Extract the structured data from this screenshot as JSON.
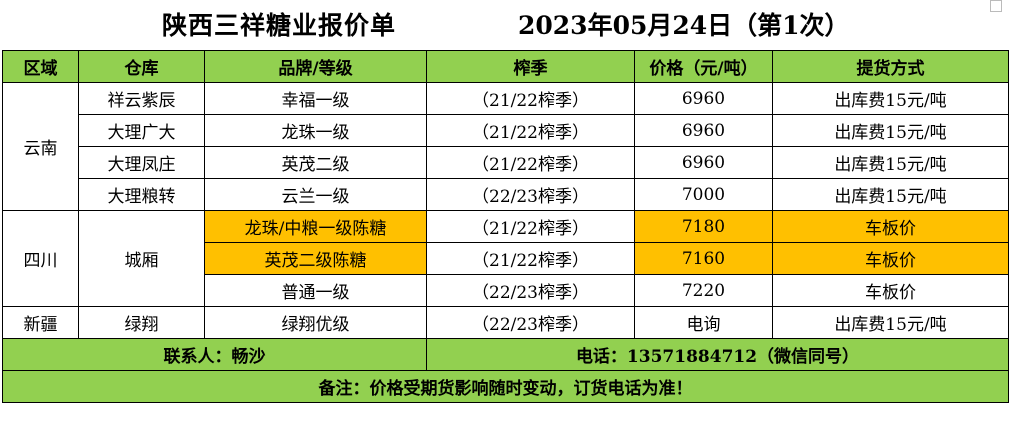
{
  "title": {
    "company": "陕西三祥糖业报价单",
    "date": "2023年05月24日（第1次）"
  },
  "headers": [
    "区域",
    "仓库",
    "品牌/等级",
    "榨季",
    "价格（元/吨）",
    "提货方式"
  ],
  "regions": {
    "yunnan": "云南",
    "sichuan": "四川",
    "xinjiang": "新疆"
  },
  "rows": [
    {
      "warehouse": "祥云紫辰",
      "brand": "幸福一级",
      "season": "（21/22榨季）",
      "price": "6960",
      "delivery": "出库费15元/吨"
    },
    {
      "warehouse": "大理广大",
      "brand": "龙珠一级",
      "season": "（21/22榨季）",
      "price": "6960",
      "delivery": "出库费15元/吨"
    },
    {
      "warehouse": "大理凤庄",
      "brand": "英茂二级",
      "season": "（21/22榨季）",
      "price": "6960",
      "delivery": "出库费15元/吨"
    },
    {
      "warehouse": "大理粮转",
      "brand": "云兰一级",
      "season": "（22/23榨季）",
      "price": "7000",
      "delivery": "出库费15元/吨"
    },
    {
      "warehouse": "城厢",
      "brand": "龙珠/中粮一级陈糖",
      "season": "（21/22榨季）",
      "price": "7180",
      "delivery": "车板价"
    },
    {
      "warehouse": "",
      "brand": "英茂二级陈糖",
      "season": "（21/22榨季）",
      "price": "7160",
      "delivery": "车板价"
    },
    {
      "warehouse": "",
      "brand": "普通一级",
      "season": "（22/23榨季）",
      "price": "7220",
      "delivery": "车板价"
    },
    {
      "warehouse": "绿翔",
      "brand": "绿翔优级",
      "season": "（22/23榨季）",
      "price": "电询",
      "delivery": "出库费15元/吨"
    }
  ],
  "contact": {
    "person": "联系人：畅沙",
    "phone": "电话：13571884712（微信同号）"
  },
  "note": "备注：价格受期货影响随时变动，订货电话为准！",
  "colors": {
    "header_green": "#92d050",
    "highlight_orange": "#ffc000"
  }
}
